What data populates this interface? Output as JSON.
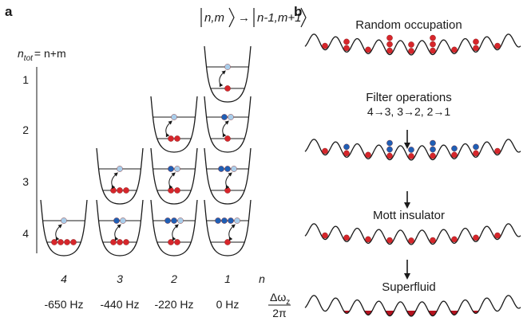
{
  "panel_a": {
    "label": "a",
    "transition": {
      "ket1": "n,m",
      "arrow": "→",
      "ket2": "n-1,m+1"
    },
    "axis_title": {
      "n": "n",
      "sub": "tot",
      "rest": "= n+m"
    },
    "rows": [
      "1",
      "2",
      "3",
      "4"
    ],
    "columns": [
      "4",
      "3",
      "2",
      "1"
    ],
    "column_axis": "n",
    "frequencies": [
      "-650 Hz",
      "-440 Hz",
      "-220 Hz",
      "0 Hz"
    ],
    "frequency_axis": {
      "numerator": "Δω",
      "sub": "z",
      "denominator": "2π"
    }
  },
  "panel_b": {
    "label": "b",
    "stages": [
      {
        "title": "Random occupation"
      },
      {
        "title": "Filter operations",
        "subtitle": "4→3, 3→2, 2→1"
      },
      {
        "title": "Mott insulator"
      },
      {
        "title": "Superfluid"
      }
    ]
  }
}
